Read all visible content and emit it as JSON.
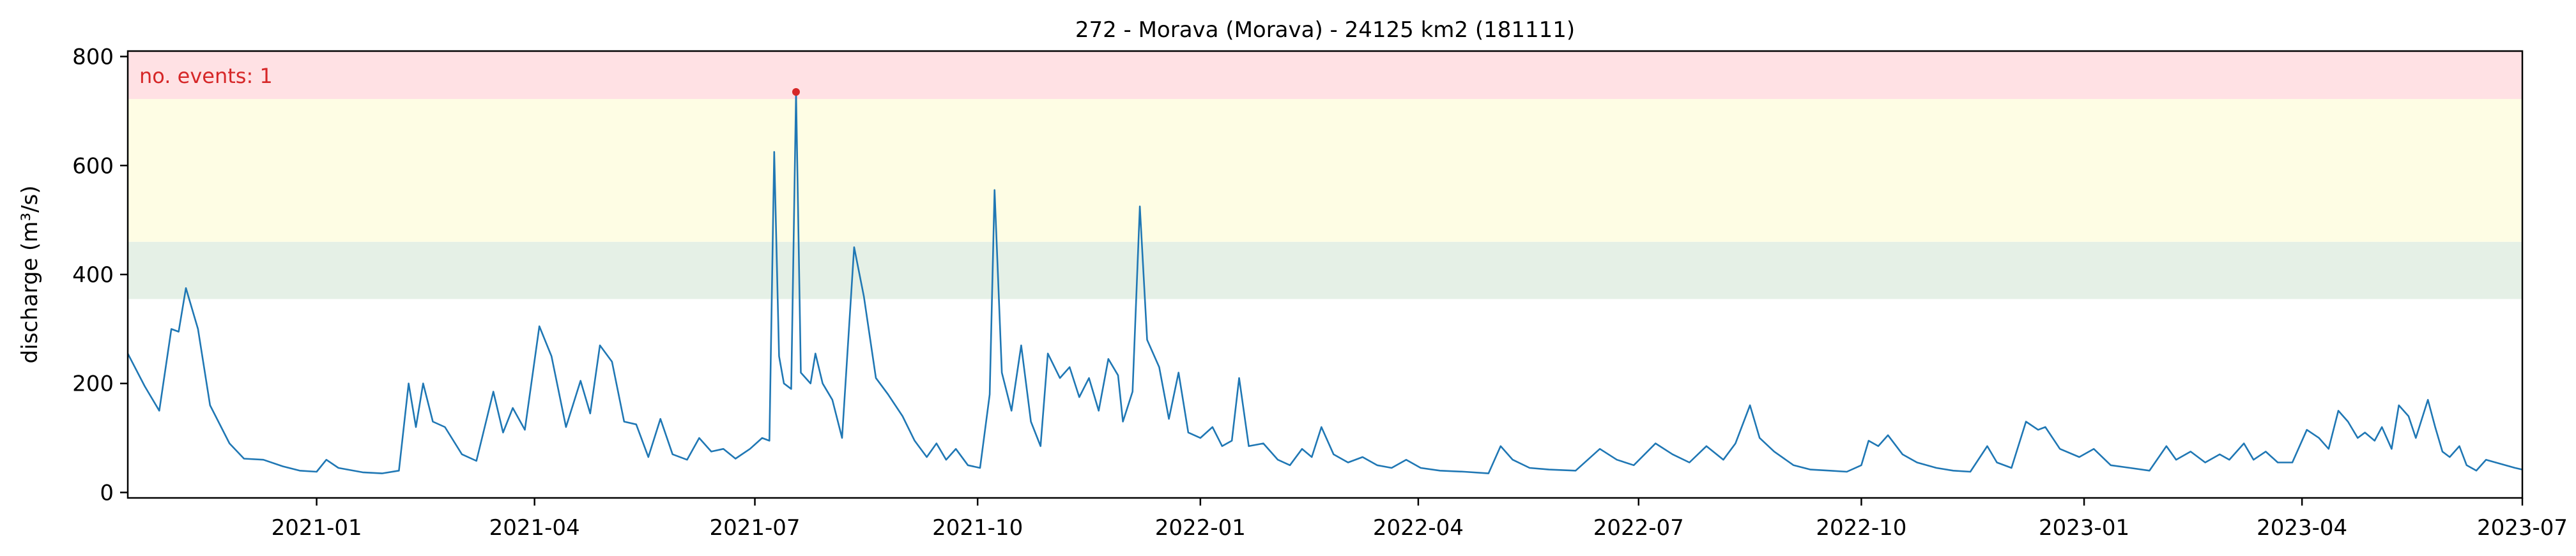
{
  "chart_data": {
    "type": "line",
    "title": "272 - Morava (Morava) - 24125 km2 (181111)",
    "ylabel": "discharge (m³/s)",
    "xlabel": "",
    "x_range": [
      "2020-10-15",
      "2023-07-01"
    ],
    "ylim": [
      -10,
      810
    ],
    "yticks": [
      0,
      200,
      400,
      600,
      800
    ],
    "xticks": [
      "2021-01",
      "2021-04",
      "2021-07",
      "2021-10",
      "2022-01",
      "2022-04",
      "2022-07",
      "2022-10",
      "2023-01",
      "2023-04",
      "2023-07"
    ],
    "grid": false,
    "series": [
      {
        "color": "#1f77b4",
        "points": [
          [
            "2020-10-15",
            255
          ],
          [
            "2020-10-22",
            195
          ],
          [
            "2020-10-28",
            150
          ],
          [
            "2020-11-02",
            300
          ],
          [
            "2020-11-05",
            295
          ],
          [
            "2020-11-08",
            375
          ],
          [
            "2020-11-13",
            300
          ],
          [
            "2020-11-18",
            160
          ],
          [
            "2020-11-26",
            90
          ],
          [
            "2020-12-02",
            62
          ],
          [
            "2020-12-10",
            60
          ],
          [
            "2020-12-18",
            48
          ],
          [
            "2020-12-25",
            40
          ],
          [
            "2021-01-01",
            38
          ],
          [
            "2021-01-05",
            60
          ],
          [
            "2021-01-10",
            45
          ],
          [
            "2021-01-20",
            37
          ],
          [
            "2021-01-28",
            35
          ],
          [
            "2021-02-04",
            40
          ],
          [
            "2021-02-08",
            200
          ],
          [
            "2021-02-11",
            120
          ],
          [
            "2021-02-14",
            200
          ],
          [
            "2021-02-18",
            130
          ],
          [
            "2021-02-23",
            120
          ],
          [
            "2021-03-02",
            70
          ],
          [
            "2021-03-08",
            58
          ],
          [
            "2021-03-15",
            185
          ],
          [
            "2021-03-19",
            110
          ],
          [
            "2021-03-23",
            155
          ],
          [
            "2021-03-28",
            115
          ],
          [
            "2021-04-03",
            305
          ],
          [
            "2021-04-08",
            250
          ],
          [
            "2021-04-14",
            120
          ],
          [
            "2021-04-20",
            205
          ],
          [
            "2021-04-24",
            145
          ],
          [
            "2021-04-28",
            270
          ],
          [
            "2021-05-03",
            240
          ],
          [
            "2021-05-08",
            130
          ],
          [
            "2021-05-13",
            125
          ],
          [
            "2021-05-18",
            65
          ],
          [
            "2021-05-23",
            135
          ],
          [
            "2021-05-28",
            70
          ],
          [
            "2021-06-03",
            60
          ],
          [
            "2021-06-08",
            100
          ],
          [
            "2021-06-13",
            75
          ],
          [
            "2021-06-18",
            80
          ],
          [
            "2021-06-23",
            62
          ],
          [
            "2021-06-29",
            80
          ],
          [
            "2021-07-04",
            100
          ],
          [
            "2021-07-07",
            95
          ],
          [
            "2021-07-09",
            625
          ],
          [
            "2021-07-11",
            250
          ],
          [
            "2021-07-13",
            200
          ],
          [
            "2021-07-16",
            190
          ],
          [
            "2021-07-18",
            735
          ],
          [
            "2021-07-20",
            220
          ],
          [
            "2021-07-24",
            200
          ],
          [
            "2021-07-26",
            255
          ],
          [
            "2021-07-29",
            200
          ],
          [
            "2021-08-02",
            170
          ],
          [
            "2021-08-06",
            100
          ],
          [
            "2021-08-11",
            450
          ],
          [
            "2021-08-15",
            360
          ],
          [
            "2021-08-20",
            210
          ],
          [
            "2021-08-25",
            180
          ],
          [
            "2021-08-31",
            140
          ],
          [
            "2021-09-05",
            95
          ],
          [
            "2021-09-10",
            65
          ],
          [
            "2021-09-14",
            90
          ],
          [
            "2021-09-18",
            60
          ],
          [
            "2021-09-22",
            80
          ],
          [
            "2021-09-27",
            50
          ],
          [
            "2021-10-02",
            45
          ],
          [
            "2021-10-06",
            180
          ],
          [
            "2021-10-08",
            555
          ],
          [
            "2021-10-11",
            220
          ],
          [
            "2021-10-15",
            150
          ],
          [
            "2021-10-19",
            270
          ],
          [
            "2021-10-23",
            130
          ],
          [
            "2021-10-27",
            85
          ],
          [
            "2021-10-30",
            255
          ],
          [
            "2021-11-04",
            210
          ],
          [
            "2021-11-08",
            230
          ],
          [
            "2021-11-12",
            175
          ],
          [
            "2021-11-16",
            210
          ],
          [
            "2021-11-20",
            150
          ],
          [
            "2021-11-24",
            245
          ],
          [
            "2021-11-28",
            215
          ],
          [
            "2021-11-30",
            130
          ],
          [
            "2021-12-04",
            185
          ],
          [
            "2021-12-07",
            525
          ],
          [
            "2021-12-10",
            280
          ],
          [
            "2021-12-15",
            230
          ],
          [
            "2021-12-19",
            135
          ],
          [
            "2021-12-23",
            220
          ],
          [
            "2021-12-27",
            110
          ],
          [
            "2022-01-01",
            100
          ],
          [
            "2022-01-06",
            120
          ],
          [
            "2022-01-10",
            85
          ],
          [
            "2022-01-14",
            95
          ],
          [
            "2022-01-17",
            210
          ],
          [
            "2022-01-21",
            85
          ],
          [
            "2022-01-27",
            90
          ],
          [
            "2022-02-02",
            60
          ],
          [
            "2022-02-07",
            50
          ],
          [
            "2022-02-12",
            80
          ],
          [
            "2022-02-16",
            65
          ],
          [
            "2022-02-20",
            120
          ],
          [
            "2022-02-25",
            70
          ],
          [
            "2022-03-03",
            55
          ],
          [
            "2022-03-09",
            65
          ],
          [
            "2022-03-15",
            50
          ],
          [
            "2022-03-21",
            45
          ],
          [
            "2022-03-27",
            60
          ],
          [
            "2022-04-02",
            45
          ],
          [
            "2022-04-10",
            40
          ],
          [
            "2022-04-20",
            38
          ],
          [
            "2022-04-30",
            35
          ],
          [
            "2022-05-05",
            85
          ],
          [
            "2022-05-10",
            60
          ],
          [
            "2022-05-17",
            45
          ],
          [
            "2022-05-25",
            42
          ],
          [
            "2022-06-05",
            40
          ],
          [
            "2022-06-15",
            80
          ],
          [
            "2022-06-22",
            60
          ],
          [
            "2022-06-29",
            50
          ],
          [
            "2022-07-08",
            90
          ],
          [
            "2022-07-15",
            70
          ],
          [
            "2022-07-22",
            55
          ],
          [
            "2022-07-29",
            85
          ],
          [
            "2022-08-05",
            60
          ],
          [
            "2022-08-10",
            90
          ],
          [
            "2022-08-16",
            160
          ],
          [
            "2022-08-20",
            100
          ],
          [
            "2022-08-26",
            75
          ],
          [
            "2022-09-03",
            50
          ],
          [
            "2022-09-10",
            42
          ],
          [
            "2022-09-18",
            40
          ],
          [
            "2022-09-25",
            38
          ],
          [
            "2022-10-01",
            50
          ],
          [
            "2022-10-04",
            95
          ],
          [
            "2022-10-08",
            85
          ],
          [
            "2022-10-12",
            105
          ],
          [
            "2022-10-18",
            70
          ],
          [
            "2022-10-24",
            55
          ],
          [
            "2022-11-01",
            45
          ],
          [
            "2022-11-08",
            40
          ],
          [
            "2022-11-15",
            38
          ],
          [
            "2022-11-22",
            85
          ],
          [
            "2022-11-26",
            55
          ],
          [
            "2022-12-02",
            45
          ],
          [
            "2022-12-08",
            130
          ],
          [
            "2022-12-13",
            115
          ],
          [
            "2022-12-16",
            120
          ],
          [
            "2022-12-22",
            80
          ],
          [
            "2022-12-30",
            65
          ],
          [
            "2023-01-05",
            80
          ],
          [
            "2023-01-12",
            50
          ],
          [
            "2023-01-20",
            45
          ],
          [
            "2023-01-28",
            40
          ],
          [
            "2023-02-04",
            85
          ],
          [
            "2023-02-08",
            60
          ],
          [
            "2023-02-14",
            75
          ],
          [
            "2023-02-20",
            55
          ],
          [
            "2023-02-26",
            70
          ],
          [
            "2023-03-02",
            60
          ],
          [
            "2023-03-08",
            90
          ],
          [
            "2023-03-12",
            60
          ],
          [
            "2023-03-17",
            75
          ],
          [
            "2023-03-22",
            55
          ],
          [
            "2023-03-28",
            55
          ],
          [
            "2023-04-03",
            115
          ],
          [
            "2023-04-08",
            100
          ],
          [
            "2023-04-12",
            80
          ],
          [
            "2023-04-16",
            150
          ],
          [
            "2023-04-20",
            130
          ],
          [
            "2023-04-24",
            100
          ],
          [
            "2023-04-27",
            110
          ],
          [
            "2023-05-01",
            95
          ],
          [
            "2023-05-04",
            120
          ],
          [
            "2023-05-08",
            80
          ],
          [
            "2023-05-11",
            160
          ],
          [
            "2023-05-15",
            140
          ],
          [
            "2023-05-18",
            100
          ],
          [
            "2023-05-23",
            170
          ],
          [
            "2023-05-26",
            120
          ],
          [
            "2023-05-29",
            75
          ],
          [
            "2023-06-01",
            65
          ],
          [
            "2023-06-05",
            85
          ],
          [
            "2023-06-08",
            50
          ],
          [
            "2023-06-12",
            40
          ],
          [
            "2023-06-16",
            60
          ],
          [
            "2023-06-20",
            55
          ],
          [
            "2023-06-24",
            50
          ],
          [
            "2023-06-28",
            45
          ],
          [
            "2023-07-01",
            42
          ]
        ]
      }
    ],
    "threshold_bands": [
      {
        "from": 355,
        "to": 460,
        "color": "#e5f0e6"
      },
      {
        "from": 460,
        "to": 722,
        "color": "#fefde4"
      },
      {
        "from": 722,
        "to": 810,
        "color": "#ffe1e4"
      }
    ],
    "event_marker": {
      "x": "2021-07-18",
      "y": 735,
      "color": "#d62728"
    },
    "annotation": {
      "text": "no. events: 1",
      "color": "#d62728",
      "position": "top-left"
    }
  }
}
